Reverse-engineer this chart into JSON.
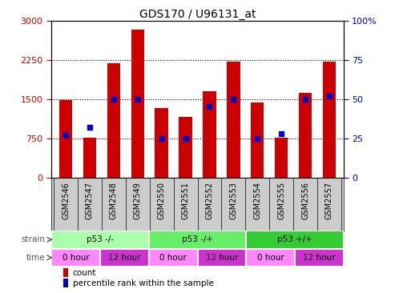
{
  "title": "GDS170 / U96131_at",
  "samples": [
    "GSM2546",
    "GSM2547",
    "GSM2548",
    "GSM2549",
    "GSM2550",
    "GSM2551",
    "GSM2552",
    "GSM2553",
    "GSM2554",
    "GSM2555",
    "GSM2556",
    "GSM2557"
  ],
  "counts": [
    1480,
    760,
    2180,
    2820,
    1330,
    1160,
    1640,
    2220,
    1440,
    760,
    1620,
    2210
  ],
  "percentiles": [
    27,
    32,
    50,
    50,
    25,
    25,
    45,
    50,
    25,
    28,
    50,
    52
  ],
  "ylim_left": [
    0,
    3000
  ],
  "ylim_right": [
    0,
    100
  ],
  "yticks_left": [
    0,
    750,
    1500,
    2250,
    3000
  ],
  "yticks_right": [
    0,
    25,
    50,
    75,
    100
  ],
  "ytick_right_labels": [
    "0",
    "25",
    "50",
    "75",
    "100%"
  ],
  "bar_color": "#cc0000",
  "dot_color": "#0000cc",
  "strain_groups": [
    {
      "label": "p53 -/-",
      "start": 0,
      "end": 4,
      "color": "#aaffaa"
    },
    {
      "label": "p53 -/+",
      "start": 4,
      "end": 8,
      "color": "#66ee66"
    },
    {
      "label": "p53 +/+",
      "start": 8,
      "end": 12,
      "color": "#33cc33"
    }
  ],
  "time_groups": [
    {
      "label": "0 hour",
      "start": 0,
      "end": 2,
      "color": "#ff88ff"
    },
    {
      "label": "12 hour",
      "start": 2,
      "end": 4,
      "color": "#cc33cc"
    },
    {
      "label": "0 hour",
      "start": 4,
      "end": 6,
      "color": "#ff88ff"
    },
    {
      "label": "12 hour",
      "start": 6,
      "end": 8,
      "color": "#cc33cc"
    },
    {
      "label": "0 hour",
      "start": 8,
      "end": 10,
      "color": "#ff88ff"
    },
    {
      "label": "12 hour",
      "start": 10,
      "end": 12,
      "color": "#cc33cc"
    }
  ],
  "grid_linestyle": "dotted",
  "grid_color": "#000000",
  "grid_values": [
    750,
    1500,
    2250
  ],
  "background_color": "#ffffff",
  "plot_bg_color": "#ffffff",
  "tick_label_color_left": "#cc0000",
  "tick_label_color_right": "#0000cc",
  "bar_width": 0.55,
  "xlabel_rotation": 90,
  "xtick_area_color": "#cccccc",
  "legend_items": [
    {
      "label": "count",
      "color": "#cc0000"
    },
    {
      "label": "percentile rank within the sample",
      "color": "#0000cc"
    }
  ],
  "strain_label": "strain",
  "time_label": "time"
}
